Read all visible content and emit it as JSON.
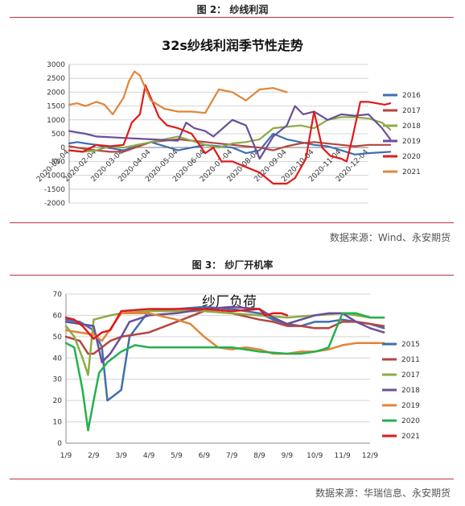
{
  "fig2": {
    "caption": "图 2：  纱线利润",
    "source": "数据来源：Wind、永安期货",
    "chart_data": {
      "type": "line",
      "title": "32s纱线利润季节性走势",
      "xlabel": "",
      "ylabel": "",
      "ylim": [
        -2000,
        3000
      ],
      "yticks": [
        -2000,
        -1500,
        -1000,
        -500,
        0,
        500,
        1000,
        1500,
        2000,
        2500,
        3000
      ],
      "xticks": [
        "2020-01-04",
        "2020-02-04",
        "2020-03-04",
        "2020-04-04",
        "2020-05-04",
        "2020-06-04",
        "2020-07-04",
        "2020-08-04",
        "2020-09-04",
        "2020-10-04",
        "2020-11-04",
        "2020-12-04"
      ],
      "grid": true,
      "legend_position": "right",
      "series": [
        {
          "name": "2016",
          "color": "#3f6fae",
          "x": [
            0,
            0.3,
            0.6,
            1,
            1.4,
            2,
            3,
            4,
            5,
            6,
            6.5,
            7,
            7.5,
            8,
            9,
            9.5,
            10,
            10.5,
            11,
            11.8
          ],
          "y": [
            150,
            200,
            150,
            100,
            0,
            -100,
            200,
            -100,
            100,
            0,
            -200,
            -100,
            500,
            300,
            100,
            50,
            -100,
            -250,
            -200,
            -150
          ]
        },
        {
          "name": "2017",
          "color": "#b5453f",
          "x": [
            0,
            0.3,
            0.6,
            1,
            1.5,
            2,
            3,
            4,
            5,
            6,
            7,
            7.5,
            8,
            8.5,
            9,
            10,
            10.5,
            11,
            11.8
          ],
          "y": [
            50,
            0,
            -50,
            -100,
            -150,
            -150,
            200,
            300,
            200,
            100,
            0,
            -100,
            50,
            150,
            200,
            100,
            50,
            100,
            100
          ]
        },
        {
          "name": "2018",
          "color": "#8bac47",
          "x": [
            0,
            0.5,
            1,
            1.5,
            2,
            3,
            4,
            5,
            5.5,
            6,
            6.5,
            7,
            7.5,
            8,
            8.5,
            9,
            9.5,
            10,
            10.5,
            11,
            11.5,
            11.8
          ],
          "y": [
            -100,
            -150,
            -100,
            50,
            0,
            200,
            400,
            100,
            0,
            150,
            200,
            300,
            700,
            750,
            800,
            700,
            1000,
            1100,
            1100,
            1050,
            900,
            650
          ]
        },
        {
          "name": "2019",
          "color": "#6b4f98",
          "x": [
            0,
            0.3,
            0.6,
            1,
            2,
            3,
            4,
            4.3,
            4.6,
            5,
            5.3,
            6,
            6.5,
            7,
            7.5,
            8,
            8.3,
            8.6,
            9,
            9.5,
            10,
            10.5,
            11,
            11.5,
            11.8
          ],
          "y": [
            600,
            550,
            500,
            400,
            350,
            300,
            250,
            900,
            700,
            600,
            400,
            1000,
            800,
            -400,
            400,
            800,
            1500,
            1200,
            1300,
            1000,
            1200,
            1150,
            1200,
            700,
            300
          ]
        },
        {
          "name": "2020",
          "color": "#e01a1a",
          "x": [
            0,
            0.5,
            1,
            1.5,
            2,
            2.3,
            2.6,
            2.8,
            3,
            3.3,
            3.6,
            4,
            4.5,
            5,
            5.3,
            5.6,
            6,
            6.5,
            7,
            7.5,
            8,
            8.3,
            8.7,
            9,
            9.3,
            9.6,
            10,
            10.2,
            10.4,
            10.7,
            11,
            11.3,
            11.6,
            11.8
          ],
          "y": [
            -100,
            -150,
            100,
            50,
            100,
            900,
            1200,
            2250,
            1800,
            1100,
            800,
            700,
            500,
            -200,
            0,
            -500,
            -500,
            -700,
            -900,
            -1300,
            -1300,
            -1100,
            -400,
            1300,
            0,
            -300,
            -400,
            -500,
            300,
            1650,
            1650,
            1600,
            1550,
            1600
          ]
        },
        {
          "name": "2021",
          "color": "#e0853a",
          "x": [
            0,
            0.3,
            0.6,
            1,
            1.3,
            1.6,
            2,
            2.2,
            2.4,
            2.6,
            3,
            3.5,
            4,
            4.5,
            5,
            5.5,
            6,
            6.5,
            7,
            7.5,
            8
          ],
          "y": [
            1550,
            1600,
            1500,
            1650,
            1550,
            1200,
            1800,
            2400,
            2750,
            2600,
            1700,
            1400,
            1300,
            1300,
            1250,
            2100,
            2000,
            1700,
            2100,
            2150,
            2000
          ]
        }
      ]
    }
  },
  "fig3": {
    "caption": "图 3：  纱厂开机率",
    "source": "数据来源：华瑞信息、永安期货",
    "chart_data": {
      "type": "line",
      "title": "纱厂负荷",
      "xlabel": "",
      "ylabel": "",
      "ylim": [
        0,
        70
      ],
      "yticks": [
        0,
        10,
        20,
        30,
        40,
        50,
        60,
        70
      ],
      "xticks": [
        "1/9",
        "2/9",
        "3/9",
        "4/9",
        "5/9",
        "6/9",
        "7/9",
        "8/9",
        "9/9",
        "10/9",
        "11/9",
        "12/9"
      ],
      "grid": true,
      "legend_position": "right",
      "series": [
        {
          "name": "2015",
          "color": "#3f6fae",
          "x": [
            0,
            0.5,
            1,
            1.3,
            1.5,
            1.8,
            2,
            2.3,
            3,
            4,
            5,
            6,
            7,
            7.5,
            8,
            8.5,
            9,
            9.5,
            10,
            10.5,
            11,
            11.5
          ],
          "y": [
            58,
            57,
            53,
            45,
            20,
            23,
            25,
            50,
            62,
            63,
            64,
            63,
            61,
            58,
            56,
            55,
            57,
            57,
            58,
            57,
            56,
            54
          ]
        },
        {
          "name": "2011",
          "color": "#b5453f",
          "x": [
            0,
            0.5,
            0.8,
            1,
            1.3,
            1.6,
            2,
            3,
            4,
            5,
            6,
            7,
            7.5,
            8,
            8.5,
            9,
            9.5,
            10,
            10.5,
            11,
            11.5
          ],
          "y": [
            50,
            48,
            42,
            42,
            45,
            48,
            50,
            52,
            57,
            62,
            61,
            58,
            57,
            55,
            55,
            54,
            54,
            57,
            57,
            56,
            55
          ]
        },
        {
          "name": "2017",
          "color": "#8bac47",
          "x": [
            0,
            0.3,
            0.6,
            0.8,
            1,
            1.3,
            1.6,
            2,
            3,
            4,
            5,
            6,
            7,
            8,
            9,
            10,
            10.5,
            11,
            11.5
          ],
          "y": [
            55,
            50,
            40,
            32,
            58,
            59,
            60,
            61,
            62,
            62,
            62,
            61,
            60,
            59,
            60,
            61,
            60,
            59,
            59
          ]
        },
        {
          "name": "2018",
          "color": "#6b4f98",
          "x": [
            0,
            0.5,
            1,
            1.3,
            1.6,
            2,
            2.3,
            3,
            4,
            5,
            6,
            7,
            7.5,
            8,
            8.5,
            9,
            9.5,
            10,
            10.5,
            11,
            11.5
          ],
          "y": [
            57,
            56,
            55,
            38,
            42,
            50,
            57,
            60,
            61,
            63,
            64,
            63,
            59,
            56,
            58,
            60,
            61,
            61,
            57,
            54,
            52
          ]
        },
        {
          "name": "2019",
          "color": "#e0853a",
          "x": [
            0,
            0.5,
            1,
            1.3,
            2,
            2.5,
            3,
            4,
            4.5,
            5,
            5.5,
            6,
            6.5,
            7,
            7.5,
            8,
            8.5,
            9,
            9.5,
            10,
            10.5,
            11,
            11.5
          ],
          "y": [
            53,
            52,
            51,
            48,
            61,
            61,
            61,
            58,
            56,
            50,
            45,
            44,
            45,
            44,
            42,
            42,
            43,
            43,
            44,
            46,
            47,
            47,
            47
          ]
        },
        {
          "name": "2020",
          "color": "#23b14d",
          "x": [
            0,
            0.3,
            0.6,
            0.8,
            1,
            1.2,
            1.5,
            2,
            2.5,
            3,
            3.5,
            4,
            5,
            6,
            7,
            8,
            8.5,
            9,
            9.3,
            9.5,
            10,
            10.5,
            11,
            11.5
          ],
          "y": [
            47,
            45,
            25,
            6,
            20,
            33,
            38,
            43,
            46,
            45,
            45,
            45,
            45,
            45,
            43,
            42,
            42,
            43,
            44,
            45,
            61,
            61,
            59,
            59
          ]
        },
        {
          "name": "2021",
          "color": "#e01a1a",
          "x": [
            0,
            0.3,
            0.6,
            1,
            1.3,
            1.6,
            2,
            3,
            4,
            5,
            6,
            7,
            7.2,
            7.5,
            7.8,
            8
          ],
          "y": [
            59,
            58,
            55,
            49,
            52,
            53,
            62,
            63,
            63,
            63,
            62,
            63,
            60,
            61,
            61,
            60
          ]
        }
      ]
    }
  }
}
